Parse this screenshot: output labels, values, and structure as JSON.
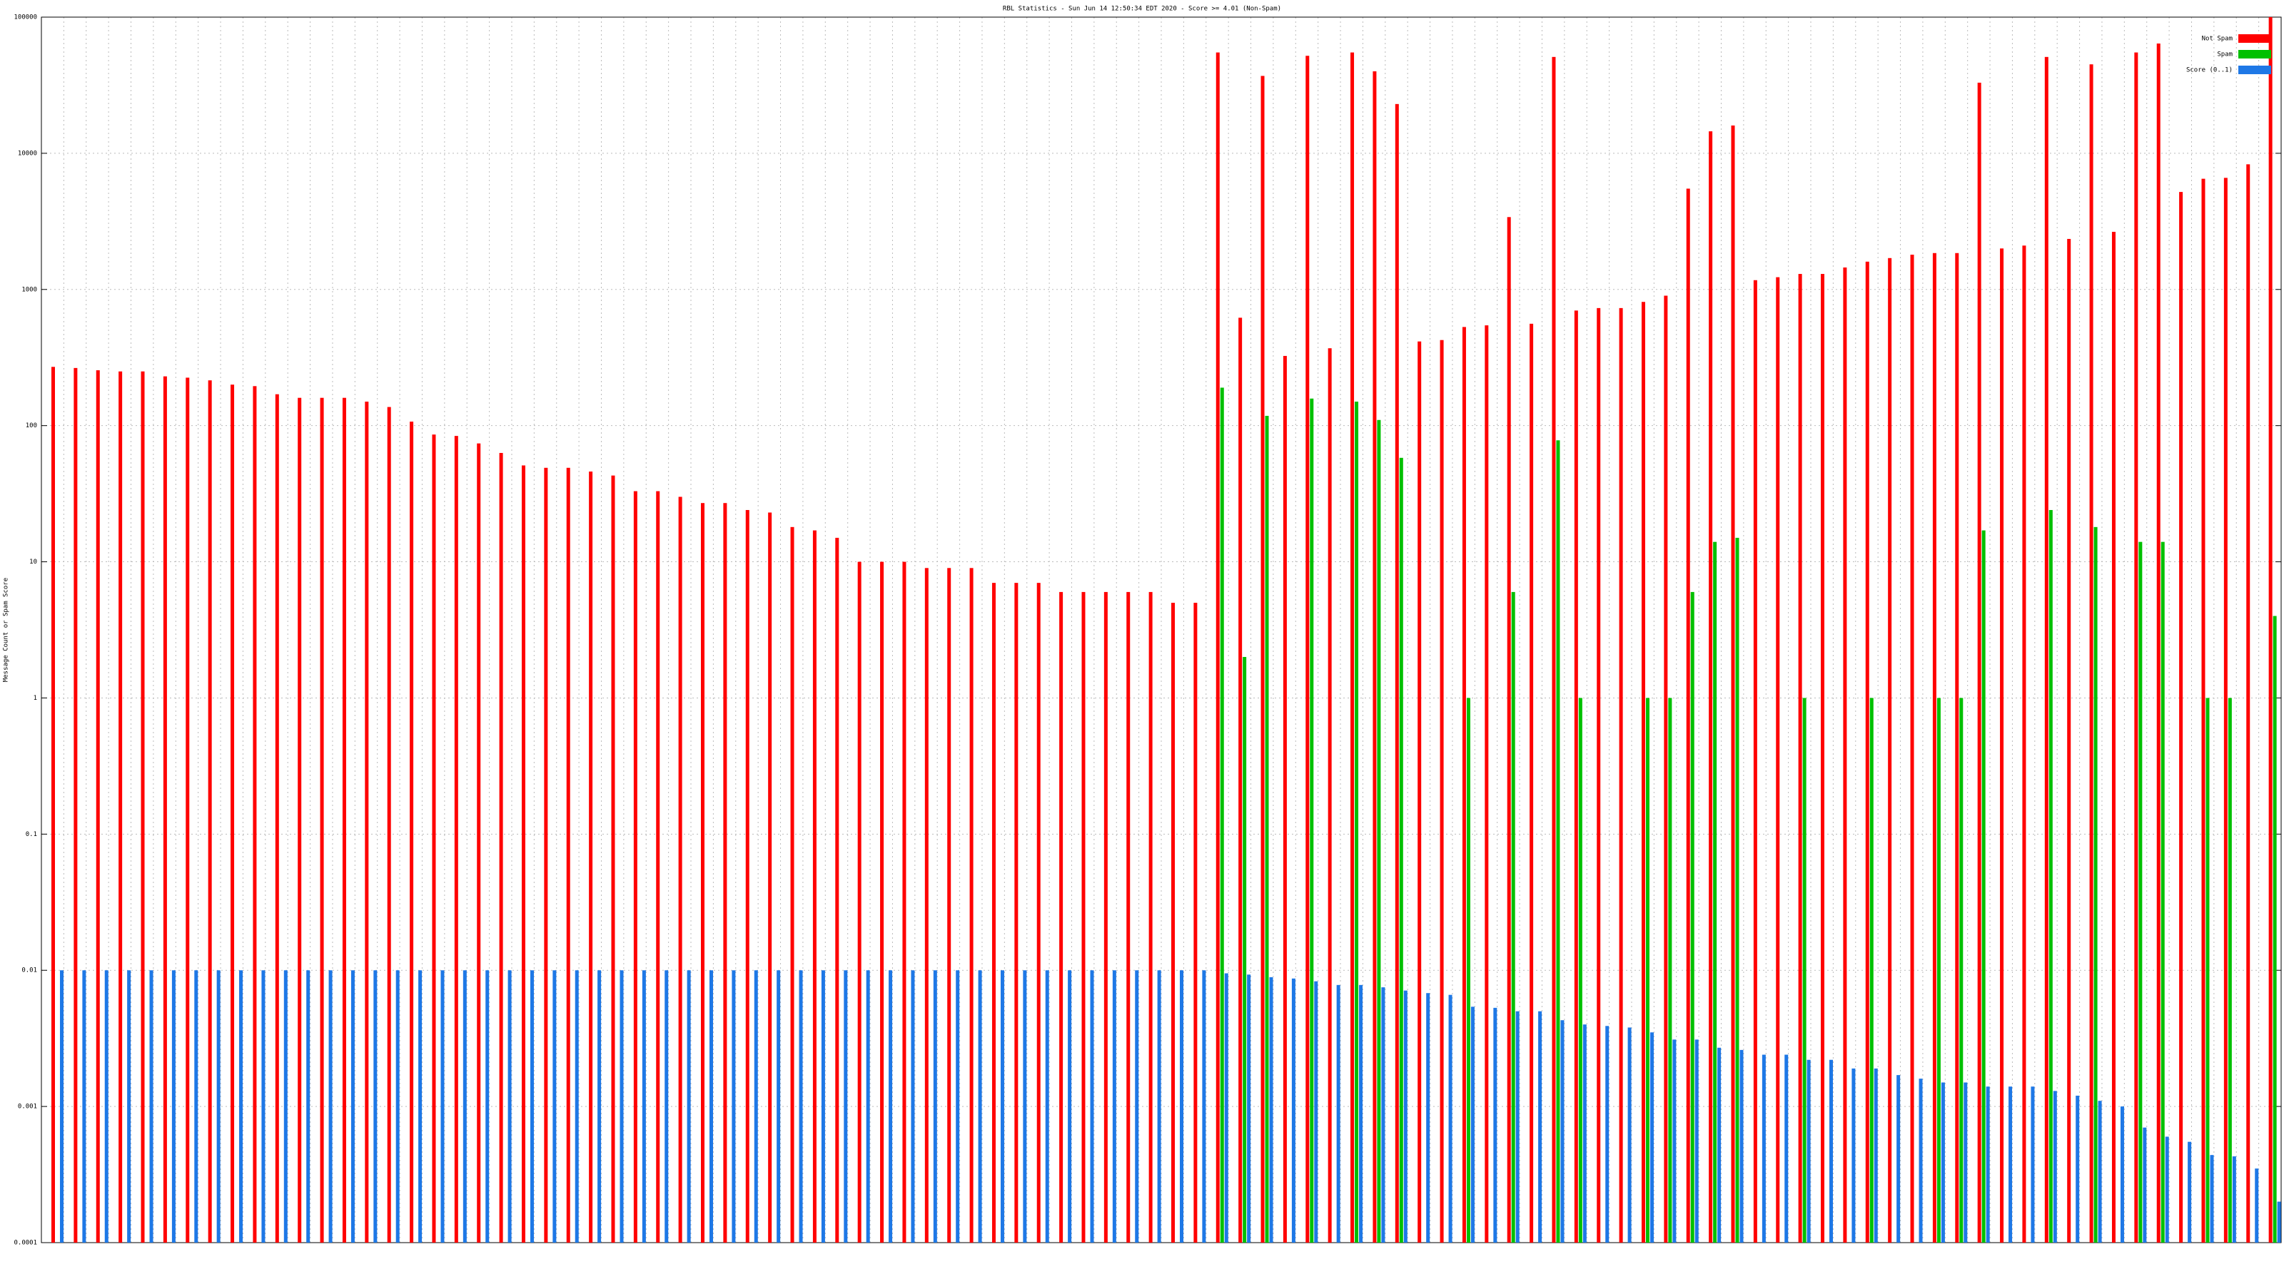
{
  "chart_data": {
    "type": "bar",
    "title": "RBL Statistics - Sun Jun 14 12:50:34 EDT 2020 - Score >= 4.01 (Non-Spam)",
    "y_label": "Message Count or Spam Score",
    "log_scale": true,
    "grid": true,
    "legend": "top-right",
    "ylim": [
      0.0001,
      100000
    ],
    "yticks": [
      0.0001,
      0.001,
      0.01,
      0.1,
      1,
      10,
      100,
      1000,
      10000,
      100000
    ],
    "categories": [
      null,
      null,
      null,
      null,
      null,
      null,
      null,
      null,
      null,
      null,
      null,
      null,
      null,
      null,
      null,
      null,
      null,
      null,
      null,
      null,
      null,
      null,
      null,
      null,
      null,
      null,
      null,
      null,
      null,
      null,
      null,
      null,
      null,
      null,
      null,
      null,
      null,
      null,
      null,
      null,
      null,
      null,
      null,
      null,
      null,
      null,
      null,
      null,
      null,
      null,
      null,
      null,
      null,
      null,
      null,
      null,
      null,
      null,
      null,
      null,
      null,
      null,
      null,
      null,
      null,
      null,
      null,
      null,
      null,
      null,
      null,
      null,
      null,
      null,
      null,
      null,
      null,
      null,
      null,
      null,
      null,
      null,
      null,
      null,
      null,
      null,
      null,
      null,
      null,
      null,
      null,
      null,
      null,
      null,
      null,
      null,
      null,
      null,
      null,
      null
    ],
    "series": [
      {
        "name": "Not Spam",
        "color": "#ff0000",
        "values": [
          270,
          265,
          255,
          250,
          250,
          230,
          225,
          215,
          200,
          195,
          170,
          160,
          160,
          160,
          150,
          137,
          107,
          86,
          84,
          74,
          63,
          51,
          49,
          49,
          46,
          43,
          33,
          33,
          30,
          27,
          27,
          24,
          23,
          18,
          17,
          15,
          10,
          10,
          10,
          9,
          9,
          9,
          7,
          7,
          7,
          6,
          6,
          6,
          6,
          6,
          5,
          5,
          55000,
          620,
          37000,
          325,
          52000,
          370,
          55000,
          40000,
          23000,
          415,
          425,
          530,
          545,
          3400,
          560,
          51000,
          700,
          730,
          730,
          810,
          900,
          5500,
          14500,
          16000,
          1170,
          1230,
          1300,
          1300,
          1450,
          1600,
          1700,
          1800,
          1850,
          1850,
          33000,
          2000,
          2100,
          51000,
          2350,
          45000,
          2650,
          55000,
          64000,
          5200,
          6500,
          6600,
          8300,
          100000
        ]
      },
      {
        "name": "Spam",
        "color": "#00c000",
        "values": [
          null,
          null,
          null,
          null,
          null,
          null,
          null,
          null,
          null,
          null,
          null,
          null,
          null,
          null,
          null,
          null,
          null,
          null,
          null,
          null,
          null,
          null,
          null,
          null,
          null,
          null,
          null,
          null,
          null,
          null,
          null,
          null,
          null,
          null,
          null,
          null,
          null,
          null,
          null,
          null,
          null,
          null,
          null,
          null,
          null,
          null,
          null,
          null,
          null,
          null,
          null,
          null,
          190,
          2,
          118,
          null,
          158,
          null,
          150,
          110,
          58,
          null,
          null,
          1,
          null,
          6,
          null,
          78,
          1,
          null,
          null,
          1,
          1,
          6,
          14,
          15,
          null,
          null,
          1,
          null,
          null,
          1,
          null,
          null,
          1,
          1,
          17,
          null,
          null,
          24,
          null,
          18,
          null,
          14,
          14,
          null,
          1,
          1,
          null,
          4
        ]
      },
      {
        "name": "Score (0..1)",
        "color": "#1e78e6",
        "values": [
          0.01,
          0.01,
          0.01,
          0.01,
          0.01,
          0.01,
          0.01,
          0.01,
          0.01,
          0.01,
          0.01,
          0.01,
          0.01,
          0.01,
          0.01,
          0.01,
          0.01,
          0.01,
          0.01,
          0.01,
          0.01,
          0.01,
          0.01,
          0.01,
          0.01,
          0.01,
          0.01,
          0.01,
          0.01,
          0.01,
          0.01,
          0.01,
          0.01,
          0.01,
          0.01,
          0.01,
          0.01,
          0.01,
          0.01,
          0.01,
          0.01,
          0.01,
          0.01,
          0.01,
          0.01,
          0.01,
          0.01,
          0.01,
          0.01,
          0.01,
          0.01,
          0.01,
          0.0095,
          0.0093,
          0.0089,
          0.0087,
          0.0083,
          0.0078,
          0.0078,
          0.0075,
          0.0071,
          0.0068,
          0.0066,
          0.0054,
          0.0053,
          0.005,
          0.005,
          0.0043,
          0.004,
          0.0039,
          0.0038,
          0.0035,
          0.0031,
          0.0031,
          0.0027,
          0.0026,
          0.0024,
          0.0024,
          0.0022,
          0.0022,
          0.0019,
          0.0019,
          0.0017,
          0.0016,
          0.0015,
          0.0015,
          0.0014,
          0.0014,
          0.0014,
          0.0013,
          0.0012,
          0.0011,
          0.001,
          0.0007,
          0.0006,
          0.00055,
          0.00044,
          0.00043,
          0.00035,
          0.0002
        ]
      }
    ]
  }
}
